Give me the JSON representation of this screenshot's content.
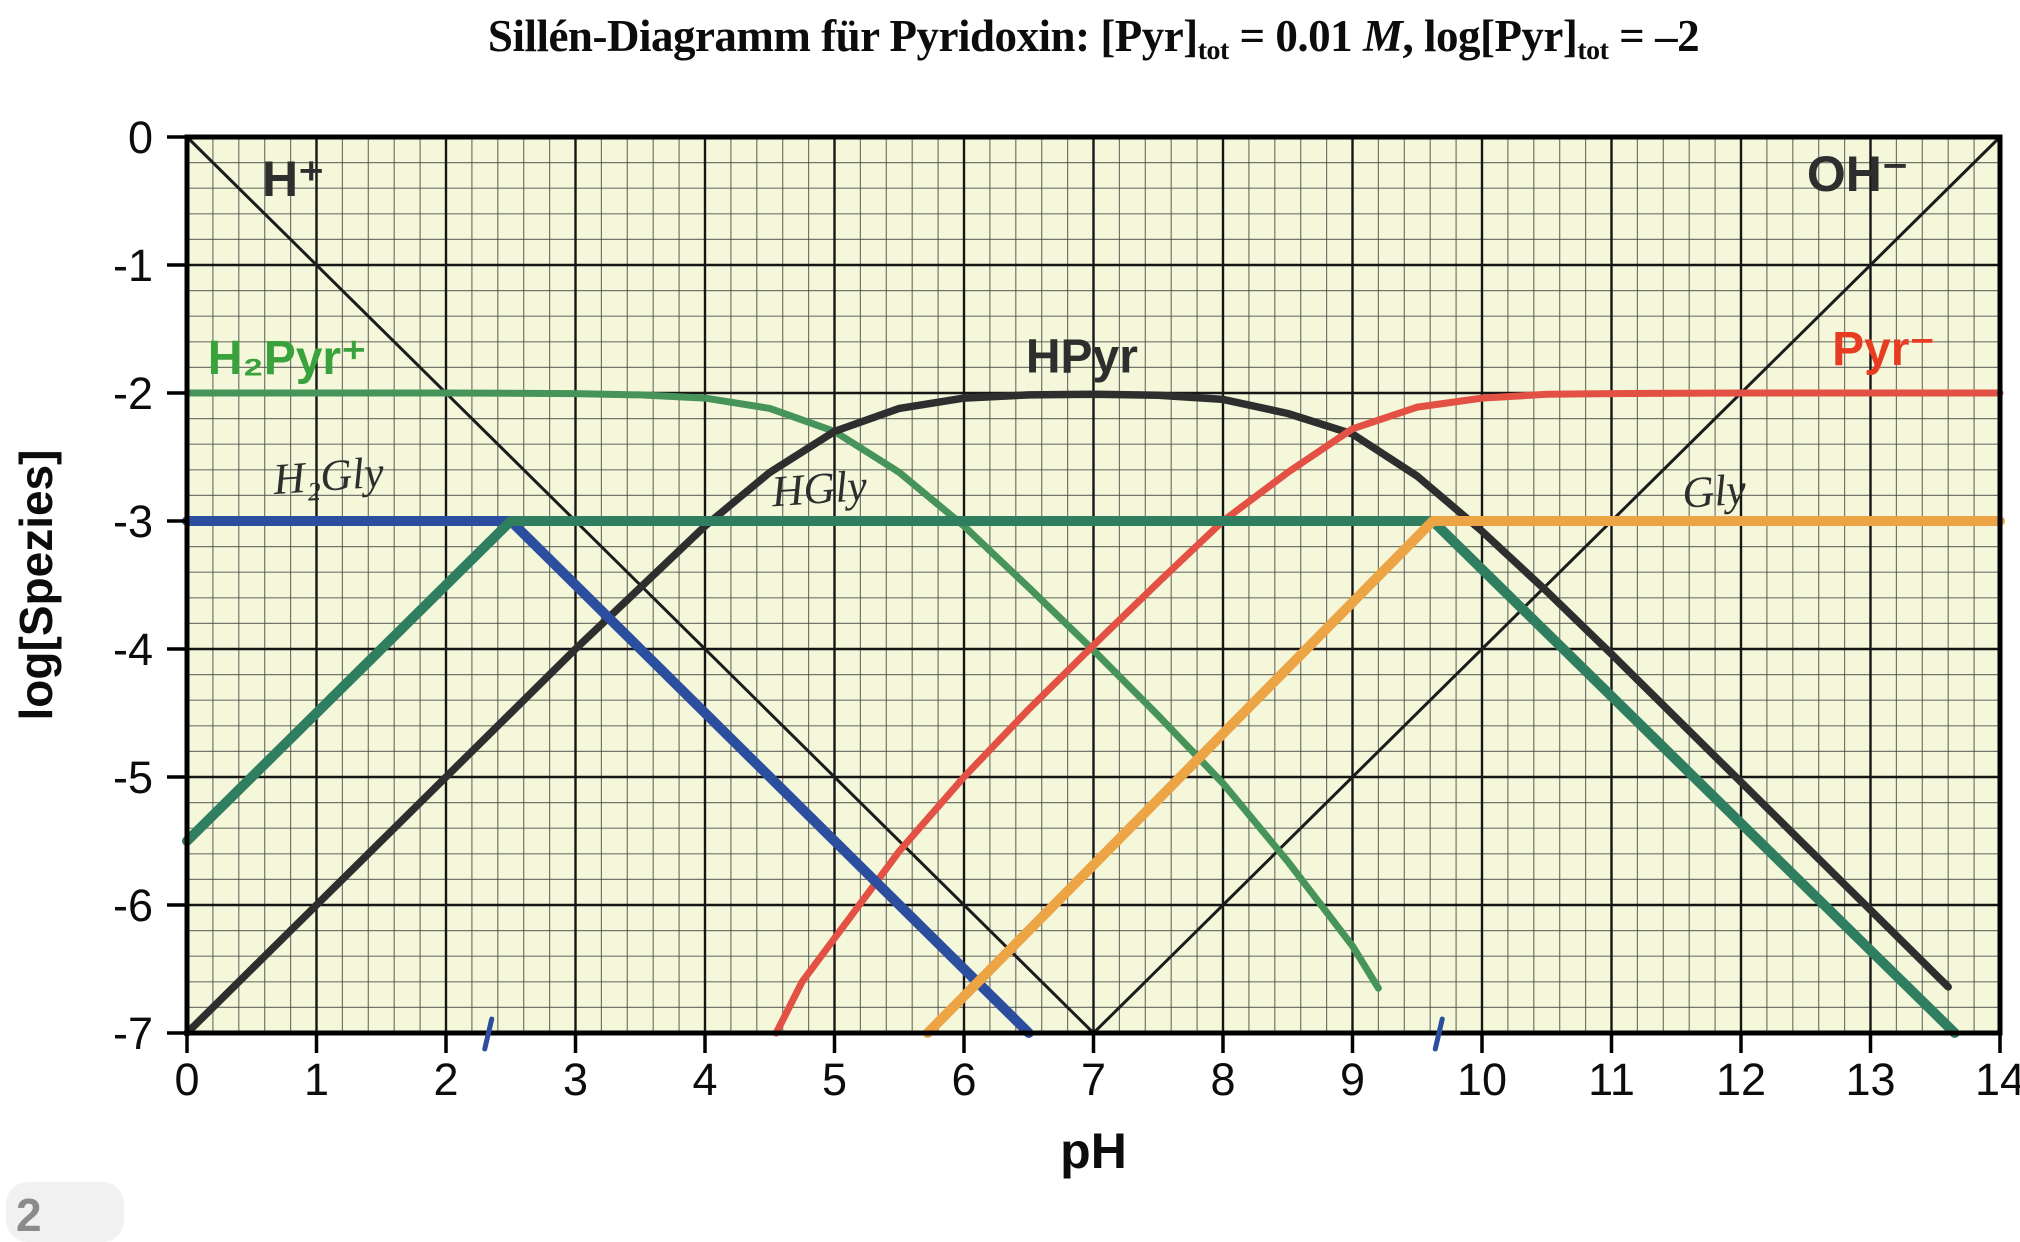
{
  "title": {
    "segments": [
      {
        "t": "Sillén-Diagramm für Pyridoxin: [Pyr]"
      },
      {
        "sub": "tot"
      },
      {
        "t": " = 0.01 "
      },
      {
        "it": "M"
      },
      {
        "t": ", log[Pyr]"
      },
      {
        "sub": "tot"
      },
      {
        "t": " = –2"
      }
    ]
  },
  "page_number_badge": "2",
  "chart_data": {
    "type": "line",
    "title": "Sillén-Diagramm für Pyridoxin: [Pyr]tot = 0.01 M, log[Pyr]tot = –2",
    "xlabel": "pH",
    "ylabel": "log[Spezies]",
    "xlim": [
      0,
      14
    ],
    "ylim": [
      -7,
      0
    ],
    "x_ticks": [
      "0",
      "1",
      "2",
      "3",
      "4",
      "5",
      "6",
      "7",
      "8",
      "9",
      "10",
      "11",
      "12",
      "13",
      "14"
    ],
    "y_ticks": [
      "0",
      "-1",
      "-2",
      "-3",
      "-4",
      "-5",
      "-6",
      "-7"
    ],
    "grid": {
      "minor_step": 0.2,
      "major_step": 1,
      "on": true
    },
    "colors": {
      "background": "#f5f7da",
      "grid_minor": "#4a4a46",
      "grid_major": "#161616",
      "border": "#000000",
      "h_oh_line": "#1c1c1c",
      "h2pyr": "#46945a",
      "h2pyr_label": "#3aa23c",
      "hpyr": "#2e2e2e",
      "pyr": "#e25143",
      "pyr_label": "#e73c22",
      "h2gly": "#2b4f9e",
      "hgly": "#2f7e60",
      "gly": "#eca445",
      "pka_tick": "#2b4f9e"
    },
    "series": [
      {
        "id": "h-plus-line",
        "name": "H+",
        "width": 3,
        "colorKey": "h_oh_line",
        "points": [
          [
            0,
            0
          ],
          [
            7,
            -7
          ]
        ]
      },
      {
        "id": "oh-minus-line",
        "name": "OH-",
        "width": 3,
        "colorKey": "h_oh_line",
        "points": [
          [
            7,
            -7
          ],
          [
            14,
            0
          ]
        ]
      },
      {
        "id": "h2pyr-curve",
        "name": "H2Pyr+",
        "width": 7,
        "colorKey": "h2pyr",
        "points": [
          [
            0,
            -2
          ],
          [
            2,
            -2
          ],
          [
            3,
            -2.005
          ],
          [
            3.5,
            -2.015
          ],
          [
            4,
            -2.04
          ],
          [
            4.5,
            -2.12
          ],
          [
            5,
            -2.3
          ],
          [
            5.5,
            -2.62
          ],
          [
            6,
            -3.04
          ],
          [
            6.5,
            -3.52
          ],
          [
            7,
            -4.01
          ],
          [
            7.5,
            -4.52
          ],
          [
            8,
            -5.05
          ],
          [
            8.5,
            -5.66
          ],
          [
            9,
            -6.32
          ],
          [
            9.2,
            -6.65
          ]
        ]
      },
      {
        "id": "hpyr-curve",
        "name": "HPyr",
        "width": 7.5,
        "colorKey": "hpyr",
        "points": [
          [
            0,
            -7
          ],
          [
            1,
            -6
          ],
          [
            2,
            -5
          ],
          [
            3,
            -4.0
          ],
          [
            3.5,
            -3.52
          ],
          [
            4,
            -3.04
          ],
          [
            4.5,
            -2.62
          ],
          [
            5,
            -2.3
          ],
          [
            5.5,
            -2.12
          ],
          [
            6,
            -2.04
          ],
          [
            6.5,
            -2.015
          ],
          [
            7,
            -2.01
          ],
          [
            7.5,
            -2.017
          ],
          [
            8,
            -2.05
          ],
          [
            8.5,
            -2.16
          ],
          [
            9,
            -2.32
          ],
          [
            9.5,
            -2.65
          ],
          [
            10,
            -3.08
          ],
          [
            10.5,
            -3.55
          ],
          [
            11,
            -4.04
          ],
          [
            12,
            -5.04
          ],
          [
            13,
            -6.04
          ],
          [
            13.6,
            -6.64
          ]
        ]
      },
      {
        "id": "pyr-curve",
        "name": "Pyr-",
        "width": 7,
        "colorKey": "pyr",
        "points": [
          [
            4.55,
            -7
          ],
          [
            4.75,
            -6.6
          ],
          [
            5,
            -6.26
          ],
          [
            5.5,
            -5.58
          ],
          [
            6,
            -5.0
          ],
          [
            6.5,
            -4.47
          ],
          [
            7,
            -3.97
          ],
          [
            7.5,
            -3.48
          ],
          [
            8,
            -3.0
          ],
          [
            8.5,
            -2.62
          ],
          [
            9,
            -2.28
          ],
          [
            9.5,
            -2.11
          ],
          [
            10,
            -2.04
          ],
          [
            10.5,
            -2.01
          ],
          [
            11,
            -2.005
          ],
          [
            12,
            -2
          ],
          [
            14,
            -2
          ]
        ]
      },
      {
        "id": "h2gly-line",
        "name": "H2Gly+",
        "width": 10,
        "colorKey": "h2gly",
        "points": [
          [
            0,
            -3
          ],
          [
            2.5,
            -3
          ],
          [
            6.5,
            -7
          ]
        ]
      },
      {
        "id": "hgly-line",
        "name": "HGly",
        "width": 10,
        "colorKey": "hgly",
        "points": [
          [
            0,
            -5.5
          ],
          [
            2.5,
            -3
          ],
          [
            9.62,
            -3
          ],
          [
            13.65,
            -7
          ]
        ]
      },
      {
        "id": "gly-line",
        "name": "Gly-",
        "width": 10,
        "colorKey": "gly",
        "points": [
          [
            5.72,
            -7
          ],
          [
            9.62,
            -3
          ],
          [
            14,
            -3
          ]
        ]
      }
    ],
    "annotations": [
      {
        "id": "label-h-plus",
        "text": "H⁺",
        "x": 0.82,
        "y": -0.46,
        "colorKey": "hpyr",
        "size": 50,
        "weight": "bold",
        "anchor": "middle",
        "style": "print"
      },
      {
        "id": "label-oh-minus",
        "text": "OH⁻",
        "x": 12.9,
        "y": -0.42,
        "colorKey": "hpyr",
        "size": 50,
        "weight": "bold",
        "anchor": "middle",
        "style": "print"
      },
      {
        "id": "label-h2pyr",
        "text": "H₂Pyr⁺",
        "x": 0.16,
        "y": -1.85,
        "colorKey": "h2pyr_label",
        "size": 48,
        "weight": "bold",
        "anchor": "start",
        "style": "print"
      },
      {
        "id": "label-hpyr",
        "text": "HPyr",
        "x": 6.91,
        "y": -1.84,
        "colorKey": "hpyr",
        "size": 48,
        "weight": "bold",
        "anchor": "middle",
        "style": "print"
      },
      {
        "id": "label-pyr",
        "text": "Pyr⁻",
        "x": 13.1,
        "y": -1.78,
        "colorKey": "pyr_label",
        "size": 48,
        "weight": "bold",
        "anchor": "middle",
        "style": "print"
      },
      {
        "id": "label-h2gly",
        "text": "H₂Gly",
        "x": 1.1,
        "y": -2.76,
        "colorKey": "hpyr",
        "size": 44,
        "weight": "normal",
        "anchor": "middle",
        "style": "handwritten"
      },
      {
        "id": "label-hgly",
        "text": "HGly",
        "x": 4.89,
        "y": -2.86,
        "colorKey": "hpyr",
        "size": 44,
        "weight": "normal",
        "anchor": "middle",
        "style": "handwritten"
      },
      {
        "id": "label-gly",
        "text": "Gly",
        "x": 11.8,
        "y": -2.88,
        "colorKey": "hpyr",
        "size": 44,
        "weight": "normal",
        "anchor": "middle",
        "style": "handwritten"
      }
    ],
    "pka_tick_marks": [
      {
        "id": "pka-tick-1",
        "x": 2.33
      },
      {
        "id": "pka-tick-2",
        "x": 9.67
      }
    ]
  }
}
